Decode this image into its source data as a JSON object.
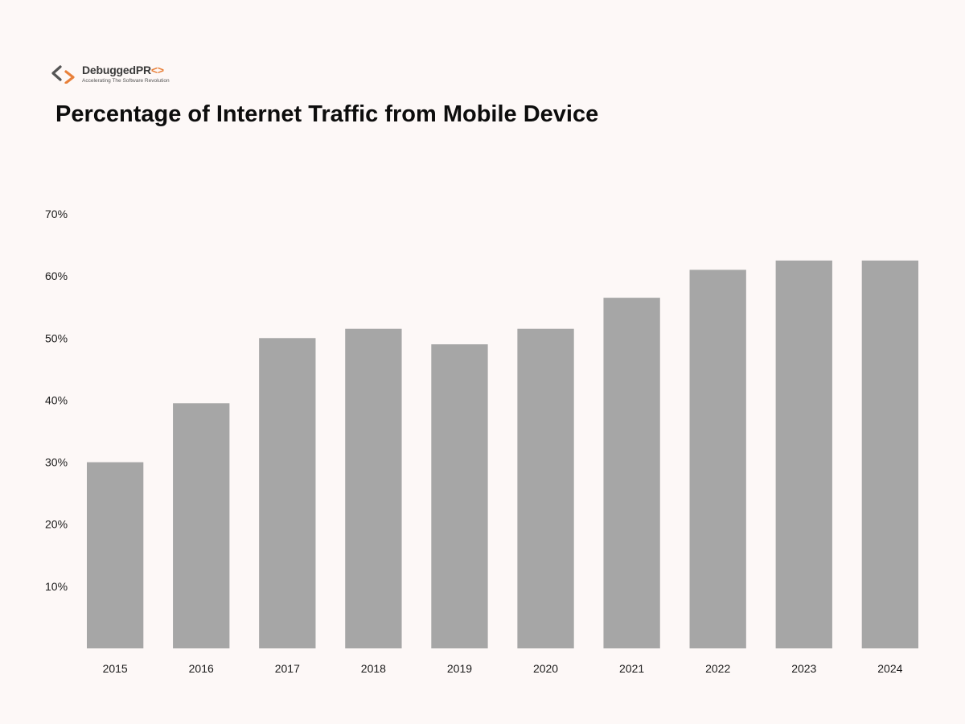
{
  "logo": {
    "name": "DebuggedPR",
    "code_mark": "<>",
    "tagline": "Accelerating The Software Revolution"
  },
  "chart_data": {
    "type": "bar",
    "title": "Percentage of Internet Traffic from Mobile Device",
    "xlabel": "",
    "ylabel": "",
    "categories": [
      "2015",
      "2016",
      "2017",
      "2018",
      "2019",
      "2020",
      "2021",
      "2022",
      "2023",
      "2024"
    ],
    "values": [
      30,
      39.5,
      50,
      51.5,
      49,
      51.5,
      56.5,
      61,
      62.5,
      62.5
    ],
    "ylim": [
      0,
      70
    ],
    "yticks": [
      "10%",
      "20%",
      "30%",
      "40%",
      "50%",
      "60%",
      "70%"
    ],
    "grid": false,
    "legend": "none",
    "bar_color": "#a6a6a6"
  },
  "colors": {
    "background": "#fdf8f7",
    "title": "#0d0d0d",
    "accent": "#e8803a"
  }
}
